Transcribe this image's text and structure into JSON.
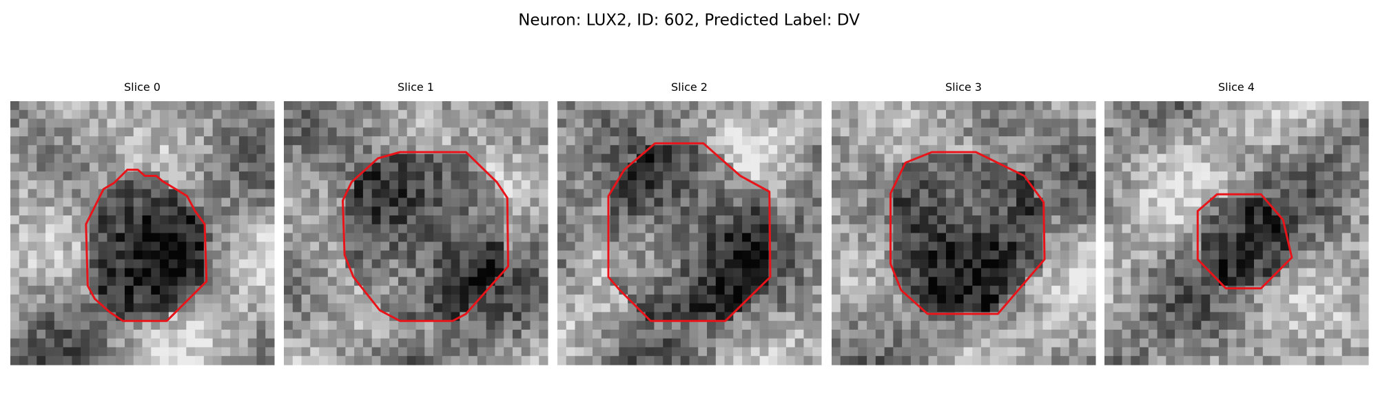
{
  "title": "Neuron: LUX2, ID: 602, Predicted Label: DV",
  "panels": [
    {
      "title": "Slice 0"
    },
    {
      "title": "Slice 1"
    },
    {
      "title": "Slice 2"
    },
    {
      "title": "Slice 3"
    },
    {
      "title": "Slice 4"
    }
  ]
}
